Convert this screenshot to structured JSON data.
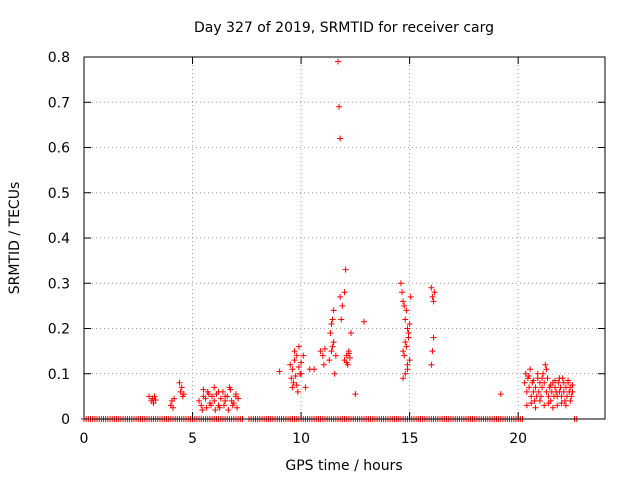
{
  "chart_data": {
    "type": "scatter",
    "title": "Day 327 of 2019, SRMTID for receiver carg",
    "xlabel": "GPS time / hours",
    "ylabel": "SRMTID / TECUs",
    "xlim": [
      0,
      24
    ],
    "ylim": [
      0,
      0.8
    ],
    "xticks": [
      0,
      5,
      10,
      15,
      20
    ],
    "yticks": [
      0,
      0.1,
      0.2,
      0.3,
      0.4,
      0.5,
      0.6,
      0.7,
      0.8
    ],
    "xtick_labels": [
      "0",
      "5",
      "10",
      "15",
      "20"
    ],
    "ytick_labels": [
      "0",
      "0.1",
      "0.2",
      "0.3",
      "0.4",
      "0.5",
      "0.6",
      "0.7",
      "0.8"
    ],
    "grid": true,
    "marker": "+",
    "color": "#ff0000",
    "baseline_y": 0.0,
    "baseline_segments": [
      [
        0.0,
        7.3
      ],
      [
        7.6,
        20.2
      ],
      [
        22.6,
        22.7
      ]
    ],
    "series": [
      {
        "name": "SRMTID",
        "x": [
          3.0,
          3.1,
          3.15,
          3.2,
          3.25,
          3.3,
          4.0,
          4.05,
          4.1,
          4.15,
          4.4,
          4.45,
          4.5,
          4.55,
          4.6,
          5.3,
          5.4,
          5.5,
          5.6,
          5.7,
          5.8,
          5.9,
          6.0,
          6.1,
          6.2,
          6.3,
          6.4,
          6.5,
          6.6,
          6.7,
          6.8,
          6.9,
          7.0,
          7.1,
          5.45,
          5.65,
          5.85,
          6.05,
          6.25,
          6.45,
          6.65,
          6.85,
          7.05,
          5.5,
          5.75,
          6.0,
          6.2,
          6.5,
          6.75,
          7.0,
          9.0,
          9.5,
          9.55,
          9.6,
          9.65,
          9.7,
          9.75,
          9.8,
          9.85,
          9.9,
          9.95,
          10.0,
          9.6,
          9.7,
          9.8,
          9.9,
          10.0,
          10.1,
          10.2,
          10.4,
          10.6,
          10.9,
          11.0,
          11.05,
          11.1,
          11.3,
          11.4,
          11.45,
          11.5,
          11.55,
          11.6,
          11.35,
          11.4,
          11.45,
          11.5,
          11.8,
          11.85,
          11.9,
          12.0,
          12.05,
          11.7,
          11.75,
          11.8,
          12.0,
          12.1,
          12.15,
          12.2,
          12.25,
          12.3,
          12.1,
          12.2,
          12.5,
          12.9,
          14.6,
          14.65,
          14.7,
          14.75,
          14.8,
          14.85,
          14.9,
          14.95,
          15.0,
          15.05,
          14.7,
          14.75,
          14.8,
          14.85,
          14.9,
          14.95,
          15.0,
          14.7,
          14.8,
          14.9,
          16.0,
          16.05,
          16.1,
          16.15,
          16.0,
          16.05,
          16.1,
          19.2,
          20.3,
          20.35,
          20.4,
          20.45,
          20.5,
          20.55,
          20.6,
          20.65,
          20.7,
          20.75,
          20.8,
          20.85,
          20.9,
          20.95,
          21.0,
          21.05,
          21.1,
          21.15,
          21.2,
          21.25,
          21.3,
          21.35,
          21.4,
          21.45,
          21.5,
          21.55,
          21.6,
          21.65,
          21.7,
          21.75,
          21.8,
          21.85,
          21.9,
          21.95,
          22.0,
          22.05,
          22.1,
          22.15,
          22.2,
          22.25,
          22.3,
          22.35,
          22.4,
          22.45,
          22.5,
          20.4,
          20.6,
          20.8,
          21.0,
          21.2,
          21.4,
          21.6,
          21.8,
          22.0,
          22.2,
          22.4,
          20.5,
          20.7,
          20.9,
          21.1,
          21.3,
          21.5,
          21.7,
          21.9,
          22.1,
          22.3,
          22.5
        ],
        "y": [
          0.05,
          0.04,
          0.045,
          0.035,
          0.05,
          0.042,
          0.03,
          0.04,
          0.025,
          0.045,
          0.08,
          0.06,
          0.07,
          0.05,
          0.055,
          0.04,
          0.03,
          0.05,
          0.045,
          0.06,
          0.035,
          0.05,
          0.04,
          0.055,
          0.03,
          0.045,
          0.06,
          0.04,
          0.05,
          0.07,
          0.04,
          0.035,
          0.05,
          0.045,
          0.02,
          0.025,
          0.03,
          0.02,
          0.025,
          0.03,
          0.02,
          0.03,
          0.025,
          0.065,
          0.055,
          0.07,
          0.06,
          0.05,
          0.065,
          0.055,
          0.105,
          0.12,
          0.09,
          0.11,
          0.08,
          0.13,
          0.095,
          0.14,
          0.06,
          0.115,
          0.1,
          0.125,
          0.07,
          0.15,
          0.075,
          0.16,
          0.1,
          0.14,
          0.07,
          0.11,
          0.11,
          0.15,
          0.14,
          0.12,
          0.155,
          0.13,
          0.15,
          0.16,
          0.17,
          0.1,
          0.14,
          0.19,
          0.21,
          0.22,
          0.24,
          0.27,
          0.22,
          0.25,
          0.28,
          0.33,
          0.79,
          0.69,
          0.62,
          0.13,
          0.14,
          0.12,
          0.15,
          0.135,
          0.19,
          0.125,
          0.145,
          0.055,
          0.215,
          0.3,
          0.28,
          0.26,
          0.25,
          0.22,
          0.24,
          0.2,
          0.19,
          0.21,
          0.27,
          0.15,
          0.14,
          0.17,
          0.16,
          0.12,
          0.18,
          0.13,
          0.09,
          0.1,
          0.11,
          0.29,
          0.27,
          0.26,
          0.28,
          0.12,
          0.15,
          0.18,
          0.055,
          0.08,
          0.1,
          0.06,
          0.09,
          0.07,
          0.11,
          0.05,
          0.08,
          0.06,
          0.04,
          0.07,
          0.05,
          0.09,
          0.06,
          0.08,
          0.05,
          0.07,
          0.1,
          0.08,
          0.12,
          0.06,
          0.09,
          0.05,
          0.07,
          0.04,
          0.06,
          0.08,
          0.05,
          0.07,
          0.06,
          0.05,
          0.08,
          0.06,
          0.07,
          0.05,
          0.09,
          0.06,
          0.04,
          0.07,
          0.05,
          0.08,
          0.06,
          0.07,
          0.05,
          0.06,
          0.03,
          0.035,
          0.025,
          0.04,
          0.03,
          0.035,
          0.025,
          0.03,
          0.035,
          0.03,
          0.04,
          0.095,
          0.085,
          0.1,
          0.09,
          0.11,
          0.075,
          0.085,
          0.09,
          0.08,
          0.085,
          0.075
        ]
      }
    ]
  }
}
